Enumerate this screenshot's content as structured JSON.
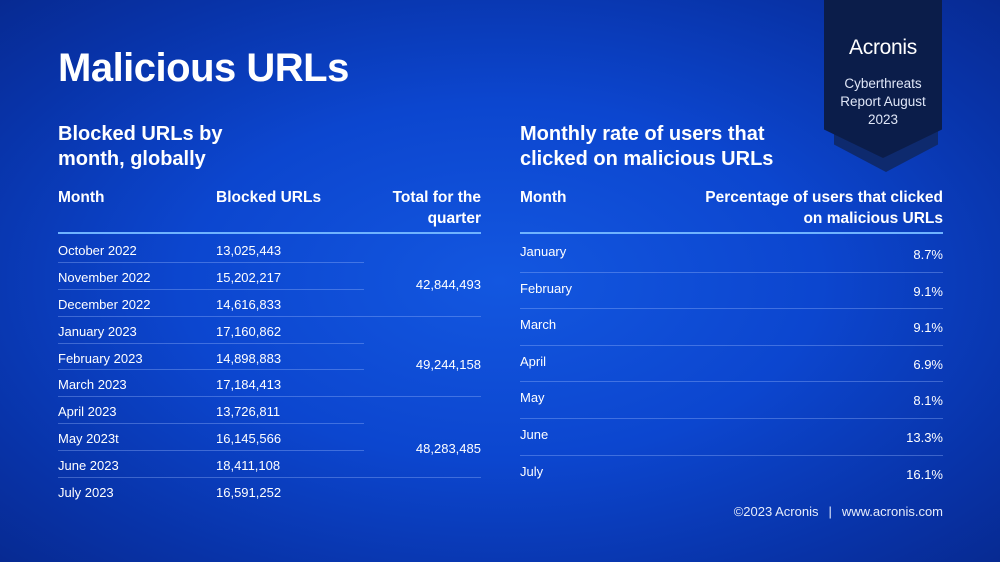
{
  "title": "Malicious URLs",
  "brand": {
    "logo": "Acronis",
    "report": "Cyberthreats Report August 2023"
  },
  "left": {
    "title": "Blocked URLs by month, globally",
    "headers": {
      "month": "Month",
      "blocked": "Blocked URLs",
      "total": "Total for the quarter"
    },
    "rows": [
      {
        "month": "October 2022",
        "value": "13,025,443"
      },
      {
        "month": "November 2022",
        "value": "15,202,217"
      },
      {
        "month": "December 2022",
        "value": "14,616,833"
      },
      {
        "month": "January 2023",
        "value": "17,160,862"
      },
      {
        "month": "February 2023",
        "value": "14,898,883"
      },
      {
        "month": "March 2023",
        "value": "17,184,413"
      },
      {
        "month": "April 2023",
        "value": "13,726,811"
      },
      {
        "month": "May 2023t",
        "value": "16,145,566"
      },
      {
        "month": "June 2023",
        "value": "18,411,108"
      },
      {
        "month": "July 2023",
        "value": "16,591,252"
      }
    ],
    "quarters": [
      "42,844,493",
      "49,244,158",
      "48,283,485"
    ]
  },
  "right": {
    "title": "Monthly rate of users that clicked on malicious URLs",
    "headers": {
      "month": "Month",
      "percentage": "Percentage of users that clicked on malicious URLs"
    },
    "rows": [
      {
        "month": "January",
        "pct": "8.7%"
      },
      {
        "month": "February",
        "pct": "9.1%"
      },
      {
        "month": "March",
        "pct": "9.1%"
      },
      {
        "month": "April",
        "pct": "6.9%"
      },
      {
        "month": "May",
        "pct": "8.1%"
      },
      {
        "month": "June",
        "pct": "13.3%"
      },
      {
        "month": "July",
        "pct": "16.1%"
      }
    ]
  },
  "footer": {
    "copyright": "©2023 Acronis",
    "separator": "|",
    "website": "www.acronis.com"
  },
  "colors": {
    "background": "#0c46cf",
    "ribbon": "#0b1d4a",
    "rule": "#6fb3ff"
  }
}
